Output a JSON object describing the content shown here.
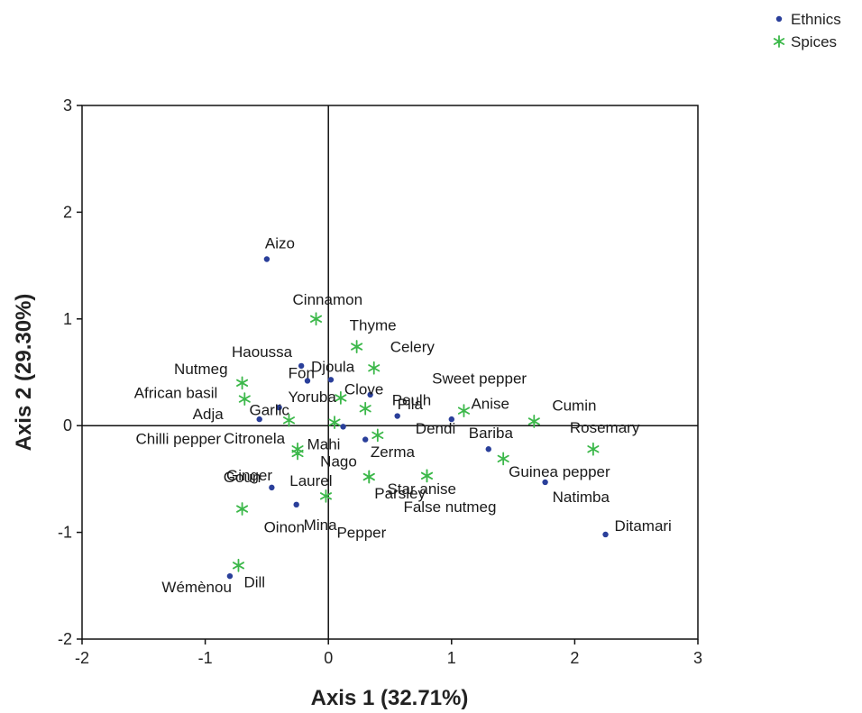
{
  "chart_data": {
    "type": "scatter",
    "xlabel": "Axis 1 (32.71%)",
    "ylabel": "Axis 2 (29.30%)",
    "xlim": [
      -2,
      3
    ],
    "ylim": [
      -2,
      3
    ],
    "xticks": [
      -2,
      -1,
      0,
      1,
      2,
      3
    ],
    "yticks": [
      -2,
      -1,
      0,
      1,
      2,
      3
    ],
    "grid": false,
    "reference_lines": {
      "x": 0,
      "y": 0
    },
    "legend": {
      "position": "top-right"
    },
    "colors": {
      "Ethnics": "#2a3f9a",
      "Spices": "#3cb84a"
    },
    "series": [
      {
        "name": "Ethnics",
        "marker": "dot",
        "points": [
          {
            "label": "Aizo",
            "x": -0.5,
            "y": 1.56
          },
          {
            "label": "Haoussa",
            "x": -0.22,
            "y": 0.56
          },
          {
            "label": "Djoula",
            "x": -0.17,
            "y": 0.42
          },
          {
            "label": "Fon",
            "x": 0.02,
            "y": 0.43
          },
          {
            "label": "Pila",
            "x": 0.34,
            "y": 0.29
          },
          {
            "label": "Peulh",
            "x": 0.56,
            "y": 0.09
          },
          {
            "label": "Adja",
            "x": -0.56,
            "y": 0.06
          },
          {
            "label": "Yoruba",
            "x": -0.4,
            "y": 0.17
          },
          {
            "label": "Dendi",
            "x": 1.0,
            "y": 0.06
          },
          {
            "label": "Bariba",
            "x": 1.3,
            "y": -0.22
          },
          {
            "label": "Mahi",
            "x": 0.12,
            "y": -0.01
          },
          {
            "label": "Nago",
            "x": 0.3,
            "y": -0.13
          },
          {
            "label": "Natimba",
            "x": 1.76,
            "y": -0.53
          },
          {
            "label": "Goun",
            "x": -0.46,
            "y": -0.58
          },
          {
            "label": "Mina",
            "x": -0.26,
            "y": -0.74
          },
          {
            "label": "Ditamari",
            "x": 2.25,
            "y": -1.02
          },
          {
            "label": "Wémènou",
            "x": -0.8,
            "y": -1.41
          }
        ]
      },
      {
        "name": "Spices",
        "marker": "star",
        "points": [
          {
            "label": "Cinnamon",
            "x": -0.1,
            "y": 1.0
          },
          {
            "label": "Thyme",
            "x": 0.23,
            "y": 0.74
          },
          {
            "label": "Celery",
            "x": 0.37,
            "y": 0.54
          },
          {
            "label": "Clove",
            "x": 0.1,
            "y": 0.26
          },
          {
            "label": "Sweet pepper",
            "x": 0.3,
            "y": 0.16
          },
          {
            "label": "Nutmeg",
            "x": -0.7,
            "y": 0.4
          },
          {
            "label": "African basil",
            "x": -0.68,
            "y": 0.25
          },
          {
            "label": "Garlic",
            "x": -0.32,
            "y": 0.05
          },
          {
            "label": "Anise",
            "x": 1.1,
            "y": 0.14
          },
          {
            "label": "Cumin",
            "x": 1.67,
            "y": 0.04
          },
          {
            "label": "Chilli pepper",
            "x": 0.05,
            "y": 0.03
          },
          {
            "label": "Citronela",
            "x": -0.25,
            "y": -0.22
          },
          {
            "label": "Rosemary",
            "x": 2.15,
            "y": -0.22
          },
          {
            "label": "Zerma",
            "x": 0.4,
            "y": -0.09
          },
          {
            "label": "Star anise",
            "x": 0.8,
            "y": -0.47
          },
          {
            "label": "Guinea pepper",
            "x": 1.42,
            "y": -0.31
          },
          {
            "label": "Ginger",
            "x": -0.25,
            "y": -0.26
          },
          {
            "label": "Laurel",
            "x": 0.33,
            "y": -0.48
          },
          {
            "label": "Parsley",
            "x": 0.33,
            "y": -0.48
          },
          {
            "label": "Pepper",
            "x": -0.02,
            "y": -0.66
          },
          {
            "label": "False nutmeg",
            "x": 0.8,
            "y": -0.47
          },
          {
            "label": "Oinon",
            "x": -0.7,
            "y": -0.78
          },
          {
            "label": "Dill",
            "x": -0.73,
            "y": -1.31
          }
        ]
      }
    ]
  }
}
